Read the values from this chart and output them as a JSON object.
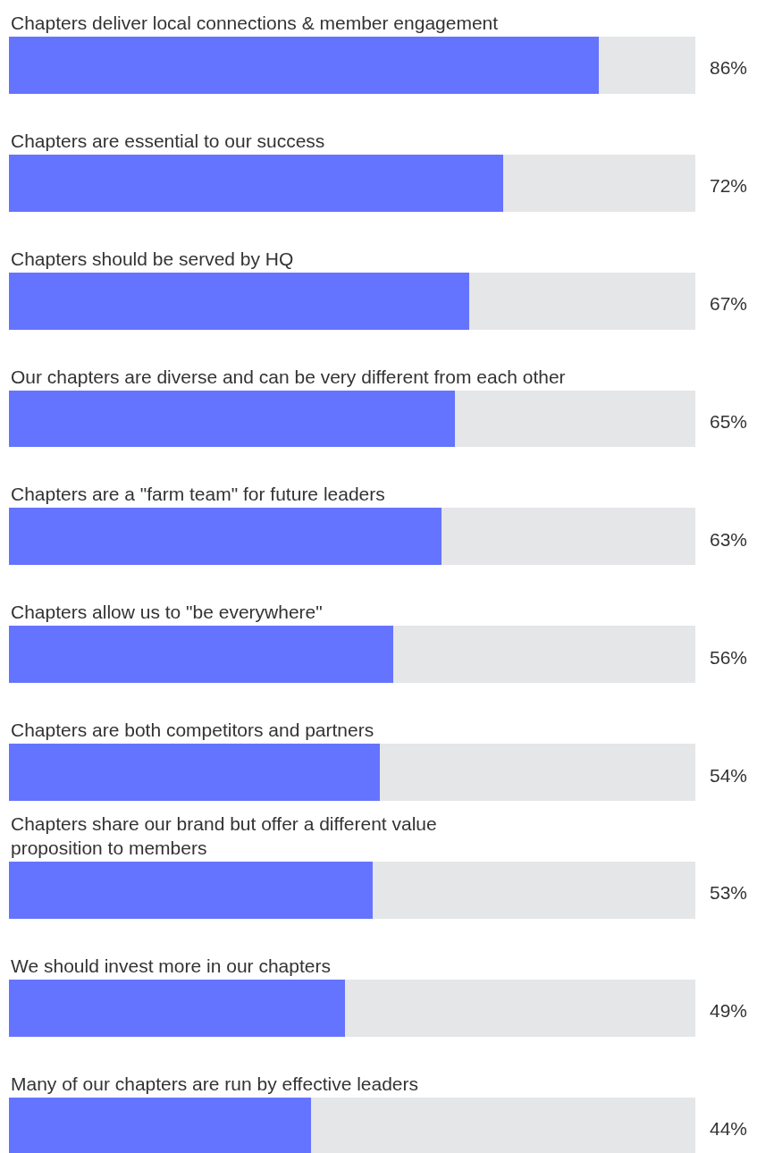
{
  "chart_data": {
    "type": "bar",
    "orientation": "horizontal",
    "stacked": true,
    "xlim": [
      0,
      100
    ],
    "categories": [
      "Chapters deliver local connections & member engagement",
      "Chapters are essential to our success",
      "Chapters should be served by HQ",
      "Our chapters are diverse and can be very different from each other",
      "Chapters are a \"farm team\" for future leaders",
      "Chapters allow us to \"be everywhere\"",
      "Chapters are both competitors and partners",
      "Chapters share our brand but offer a different value\nproposition to members",
      "We should invest more in our chapters",
      "Many of our chapters are run by effective leaders"
    ],
    "series": [
      {
        "color": "#6574fe",
        "values": [
          86,
          72,
          67,
          65,
          63,
          56,
          54,
          53,
          49,
          44
        ],
        "value_labels": [
          "86%",
          "72%",
          "67%",
          "65%",
          "63%",
          "56%",
          "54%",
          "53%",
          "49%",
          "44%"
        ]
      },
      {
        "color": "#e5e6e8",
        "values": [
          14,
          28,
          33,
          35,
          37,
          44,
          46,
          47,
          51,
          56
        ]
      }
    ]
  }
}
